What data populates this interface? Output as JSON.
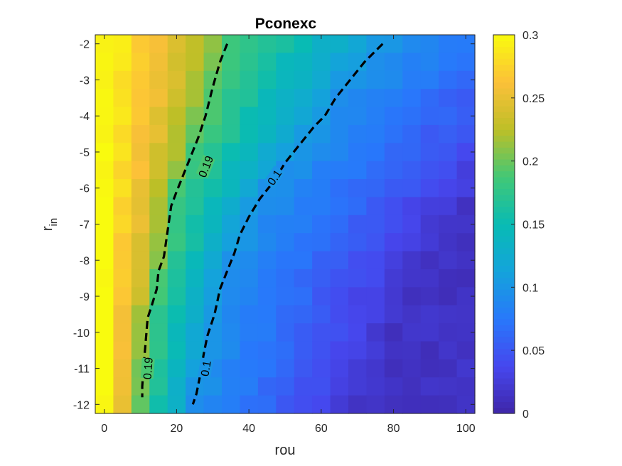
{
  "chart_data": {
    "type": "heatmap",
    "title": "Pconexc",
    "xlabel": "rou",
    "ylabel": "r",
    "ylabel_subscript": "in",
    "xlim": [
      -2.5,
      102.5
    ],
    "ylim": [
      -12.25,
      -1.75
    ],
    "x_ticks": [
      0,
      20,
      40,
      60,
      80,
      100
    ],
    "x_tick_labels": [
      "0",
      "20",
      "40",
      "60",
      "80",
      "100"
    ],
    "y_ticks": [
      -2,
      -3,
      -4,
      -5,
      -6,
      -7,
      -8,
      -9,
      -10,
      -11,
      -12
    ],
    "y_tick_labels": [
      "-2",
      "-3",
      "-4",
      "-5",
      "-6",
      "-7",
      "-8",
      "-9",
      "-10",
      "-11",
      "-12"
    ],
    "x_centers": [
      0,
      5,
      10,
      15,
      20,
      25,
      30,
      35,
      40,
      45,
      50,
      55,
      60,
      65,
      70,
      75,
      80,
      85,
      90,
      95,
      100
    ],
    "y_centers": [
      -2,
      -2.5,
      -3,
      -3.5,
      -4,
      -4.5,
      -5,
      -5.5,
      -6,
      -6.5,
      -7,
      -7.5,
      -8,
      -8.5,
      -9,
      -9.5,
      -10,
      -10.5,
      -11,
      -11.5,
      -12
    ],
    "colormap": "parula",
    "clim": [
      0,
      0.3
    ],
    "colorbar_ticks": [
      0,
      0.05,
      0.1,
      0.15,
      0.2,
      0.25,
      0.3
    ],
    "colorbar_tick_labels": [
      "0",
      "0.05",
      "0.1",
      "0.15",
      "0.2",
      "0.25",
      "0.3"
    ],
    "contours": [
      {
        "level": 0.19,
        "label": "0.19",
        "label_positions": [
          [
            28,
            -5.4
          ],
          [
            12,
            -11
          ]
        ],
        "points": [
          [
            34,
            -2
          ],
          [
            32,
            -2.5
          ],
          [
            30,
            -3.2
          ],
          [
            28,
            -4
          ],
          [
            26,
            -4.6
          ],
          [
            24,
            -5.1
          ],
          [
            22,
            -5.6
          ],
          [
            20,
            -6.1
          ],
          [
            18.5,
            -6.5
          ],
          [
            17.5,
            -7.2
          ],
          [
            16.5,
            -7.9
          ],
          [
            15,
            -8.3
          ],
          [
            14.5,
            -8.8
          ],
          [
            13,
            -9.3
          ],
          [
            12,
            -9.6
          ],
          [
            11.5,
            -10.2
          ],
          [
            11,
            -10.8
          ],
          [
            10.5,
            -11.5
          ],
          [
            10.5,
            -11.8
          ]
        ]
      },
      {
        "level": 0.1,
        "label": "0.1",
        "label_positions": [
          [
            47,
            -5.7
          ],
          [
            28,
            -11
          ]
        ],
        "points": [
          [
            77,
            -2
          ],
          [
            72,
            -2.5
          ],
          [
            68,
            -3
          ],
          [
            64,
            -3.5
          ],
          [
            61,
            -4
          ],
          [
            58,
            -4.3
          ],
          [
            54,
            -4.8
          ],
          [
            50,
            -5.3
          ],
          [
            47,
            -5.8
          ],
          [
            43,
            -6.3
          ],
          [
            40,
            -6.8
          ],
          [
            37.5,
            -7.3
          ],
          [
            36,
            -7.8
          ],
          [
            34,
            -8.3
          ],
          [
            32,
            -8.8
          ],
          [
            30.5,
            -9.5
          ],
          [
            28.5,
            -10.1
          ],
          [
            27.5,
            -10.6
          ],
          [
            26.5,
            -11.2
          ],
          [
            25.5,
            -11.7
          ],
          [
            24.5,
            -12
          ]
        ]
      }
    ],
    "grid": false,
    "legend": "colorbar right"
  }
}
